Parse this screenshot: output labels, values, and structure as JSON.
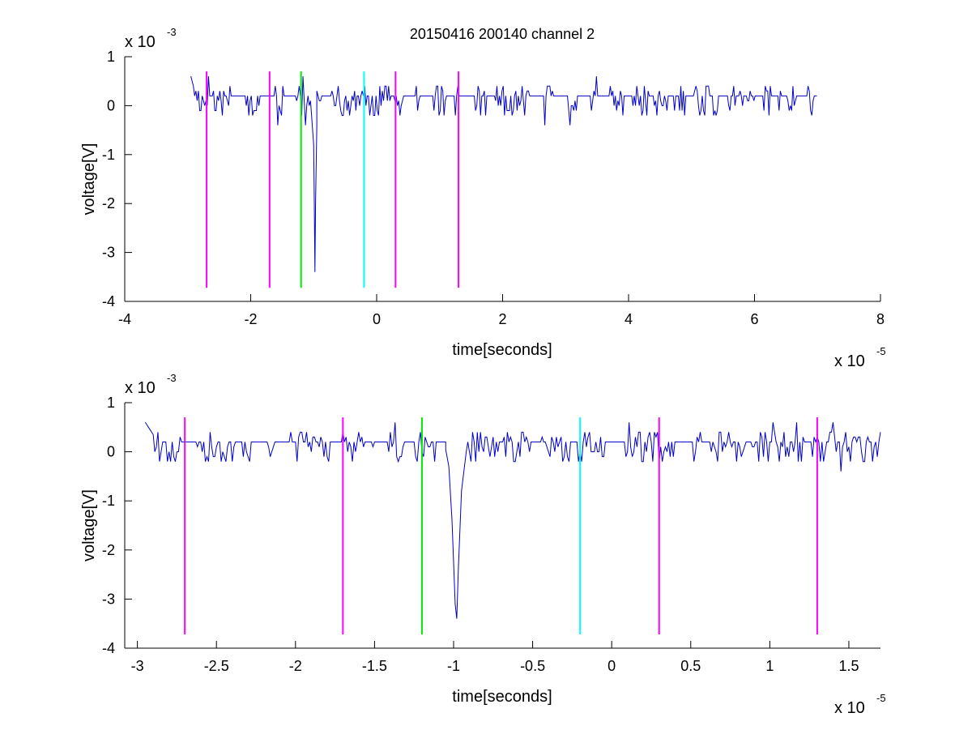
{
  "figure": {
    "title": "20150416 200140 channel 2"
  },
  "chart_data": [
    {
      "type": "line",
      "name": "overview",
      "xlabel": "time[seconds]",
      "ylabel": "voltage[V]",
      "x_multiplier": "x 10",
      "x_multiplier_exp": "-5",
      "y_multiplier": "x 10",
      "y_multiplier_exp": "-3",
      "xlim": [
        -4,
        8
      ],
      "ylim": [
        -4,
        1
      ],
      "xticks": [
        -4,
        -2,
        0,
        2,
        4,
        6,
        8
      ],
      "xtick_labels": [
        "-4",
        "-2",
        "0",
        "2",
        "4",
        "6",
        "8"
      ],
      "yticks": [
        -4,
        -3,
        -2,
        -1,
        0,
        1
      ],
      "ytick_labels": [
        "-4",
        "-3",
        "-2",
        "-1",
        "0",
        "1"
      ],
      "grid": false,
      "signal": {
        "color": "#0000cc",
        "x_start": -2.95,
        "x_end": 6.99,
        "x_step": 0.02,
        "baseline": 0.16,
        "noise_amplitude": 0.18,
        "spike": {
          "x": [
            -1.05,
            -1.0,
            -0.99,
            -0.98,
            -0.97,
            -0.95
          ],
          "y": [
            0.1,
            -0.8,
            -2.0,
            -3.4,
            -2.0,
            -0.4
          ]
        }
      },
      "markers": [
        {
          "x": -2.7,
          "color": "#ff00ff",
          "y_top": 0.7,
          "y_bottom": -3.72
        },
        {
          "x": -1.7,
          "color": "#ff00ff",
          "y_top": 0.7,
          "y_bottom": -3.72
        },
        {
          "x": -1.2,
          "color": "#00ee00",
          "y_top": 0.7,
          "y_bottom": -3.72
        },
        {
          "x": -0.2,
          "color": "#00ffff",
          "y_top": 0.7,
          "y_bottom": -3.72
        },
        {
          "x": 0.3,
          "color": "#ff00ff",
          "y_top": 0.7,
          "y_bottom": -3.72
        },
        {
          "x": 1.3,
          "color": "#ff00ff",
          "y_top": 0.7,
          "y_bottom": -3.72
        }
      ]
    },
    {
      "type": "line",
      "name": "zoom",
      "xlabel": "time[seconds]",
      "ylabel": "voltage[V]",
      "x_multiplier": "x 10",
      "x_multiplier_exp": "-5",
      "y_multiplier": "x 10",
      "y_multiplier_exp": "-3",
      "xlim": [
        -3.08,
        1.7
      ],
      "ylim": [
        -4,
        1
      ],
      "xticks": [
        -3,
        -2.5,
        -2,
        -1.5,
        -1,
        -0.5,
        0,
        0.5,
        1,
        1.5
      ],
      "xtick_labels": [
        "-3",
        "-2.5",
        "-2",
        "-1.5",
        "-1",
        "-0.5",
        "0",
        "0.5",
        "1",
        "1.5"
      ],
      "yticks": [
        -4,
        -3,
        -2,
        -1,
        0,
        1
      ],
      "ytick_labels": [
        "-4",
        "-3",
        "-2",
        "-1",
        "0",
        "1"
      ],
      "grid": false,
      "signal": {
        "color": "#0000cc",
        "x_start": -2.95,
        "x_end": 1.7,
        "x_step": 0.01,
        "baseline": 0.16,
        "noise_amplitude": 0.18,
        "spike": {
          "x": [
            -1.05,
            -1.03,
            -1.01,
            -0.99,
            -0.98,
            -0.97,
            -0.95,
            -0.92
          ],
          "y": [
            0.05,
            -0.3,
            -1.4,
            -3.1,
            -3.4,
            -2.4,
            -0.8,
            0.0
          ]
        }
      },
      "markers": [
        {
          "x": -2.7,
          "color": "#ff00ff",
          "y_top": 0.7,
          "y_bottom": -3.72
        },
        {
          "x": -1.7,
          "color": "#ff00ff",
          "y_top": 0.7,
          "y_bottom": -3.72
        },
        {
          "x": -1.2,
          "color": "#00ee00",
          "y_top": 0.7,
          "y_bottom": -3.72
        },
        {
          "x": -0.2,
          "color": "#00ffff",
          "y_top": 0.7,
          "y_bottom": -3.72
        },
        {
          "x": 0.3,
          "color": "#ff00ff",
          "y_top": 0.7,
          "y_bottom": -3.72
        },
        {
          "x": 1.3,
          "color": "#ff00ff",
          "y_top": 0.7,
          "y_bottom": -3.72
        }
      ]
    }
  ]
}
